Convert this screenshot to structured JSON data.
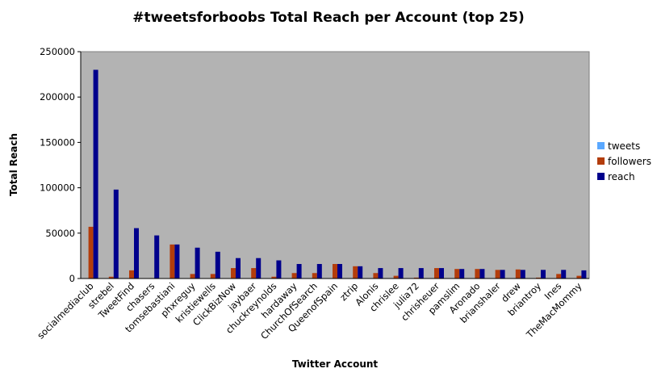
{
  "chart_data": {
    "type": "bar",
    "title": "#tweetsforboobs Total Reach per Account (top 25)",
    "xlabel": "Twitter Account",
    "ylabel": "Total Reach",
    "ylim": [
      0,
      250000
    ],
    "yticks": [
      0,
      50000,
      100000,
      150000,
      200000,
      250000
    ],
    "ytick_labels": [
      "0",
      "50000",
      "100000",
      "150000",
      "200000",
      "250000"
    ],
    "grid": false,
    "legend_position": "right",
    "categories": [
      "socialmediaclub",
      "strebel",
      "TweetFind",
      "chasers",
      "tomsebastiani",
      "phxreguy",
      "kristiewells",
      "ClickBizNow",
      "jaybaer",
      "chuckreynolds",
      "hardaway",
      "ChurchOfSearch",
      "QueenofSpain",
      "ztrip",
      "Alonis",
      "chrislee",
      "julia72",
      "chrisheuer",
      "pamslim",
      "Aronado",
      "brianshaler",
      "drew",
      "briantroy",
      "Ines",
      "TheMacMommy"
    ],
    "series": [
      {
        "name": "tweets",
        "color": "#5aa8ff",
        "values": [
          4,
          1,
          2,
          2,
          1,
          1,
          4,
          2,
          2,
          3,
          1,
          3,
          1,
          1,
          2,
          4,
          4,
          1,
          1,
          1,
          1,
          1,
          5,
          2,
          3
        ]
      },
      {
        "name": "followers",
        "color": "#b33d0c",
        "values": [
          57000,
          2000,
          9000,
          500,
          37500,
          5000,
          5000,
          11500,
          11500,
          2000,
          6000,
          6000,
          16000,
          13500,
          6000,
          3000,
          1000,
          11500,
          10500,
          10500,
          9500,
          10000,
          1000,
          5000,
          3000
        ]
      },
      {
        "name": "reach",
        "color": "#00008c",
        "values": [
          230000,
          98000,
          55500,
          47500,
          37500,
          34000,
          29500,
          22500,
          22500,
          20000,
          16000,
          16000,
          16000,
          13500,
          11500,
          11500,
          11500,
          11500,
          10500,
          10500,
          9500,
          9500,
          9500,
          9500,
          9000
        ]
      }
    ]
  }
}
